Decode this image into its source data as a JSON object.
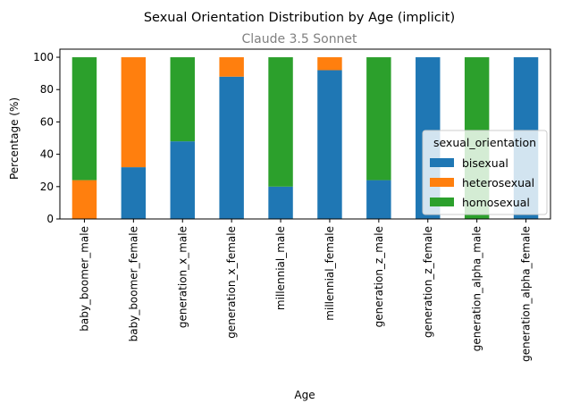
{
  "chart_data": {
    "type": "bar",
    "stacked": true,
    "title": "Sexual Orientation Distribution by Age (implicit)",
    "subtitle": "Claude 3.5 Sonnet",
    "xlabel": "Age",
    "ylabel": "Percentage (%)",
    "ylim": [
      0,
      105
    ],
    "yticks": [
      0,
      20,
      40,
      60,
      80,
      100
    ],
    "grid": false,
    "legend_position": "center-right",
    "legend_title": "sexual_orientation",
    "categories": [
      "baby_boomer_male",
      "baby_boomer_female",
      "generation_x_male",
      "generation_x_female",
      "millennial_male",
      "millennial_female",
      "generation_z_male",
      "generation_z_female",
      "generation_alpha_male",
      "generation_alpha_female"
    ],
    "series": [
      {
        "name": "bisexual",
        "color": "#1f77b4",
        "values": [
          0,
          32,
          48,
          88,
          20,
          92,
          24,
          100,
          0,
          100
        ]
      },
      {
        "name": "heterosexual",
        "color": "#ff7f0e",
        "values": [
          24,
          68,
          0,
          12,
          0,
          8,
          0,
          0,
          0,
          0
        ]
      },
      {
        "name": "homosexual",
        "color": "#2ca02c",
        "values": [
          76,
          0,
          52,
          0,
          80,
          0,
          76,
          0,
          100,
          0
        ]
      }
    ]
  }
}
